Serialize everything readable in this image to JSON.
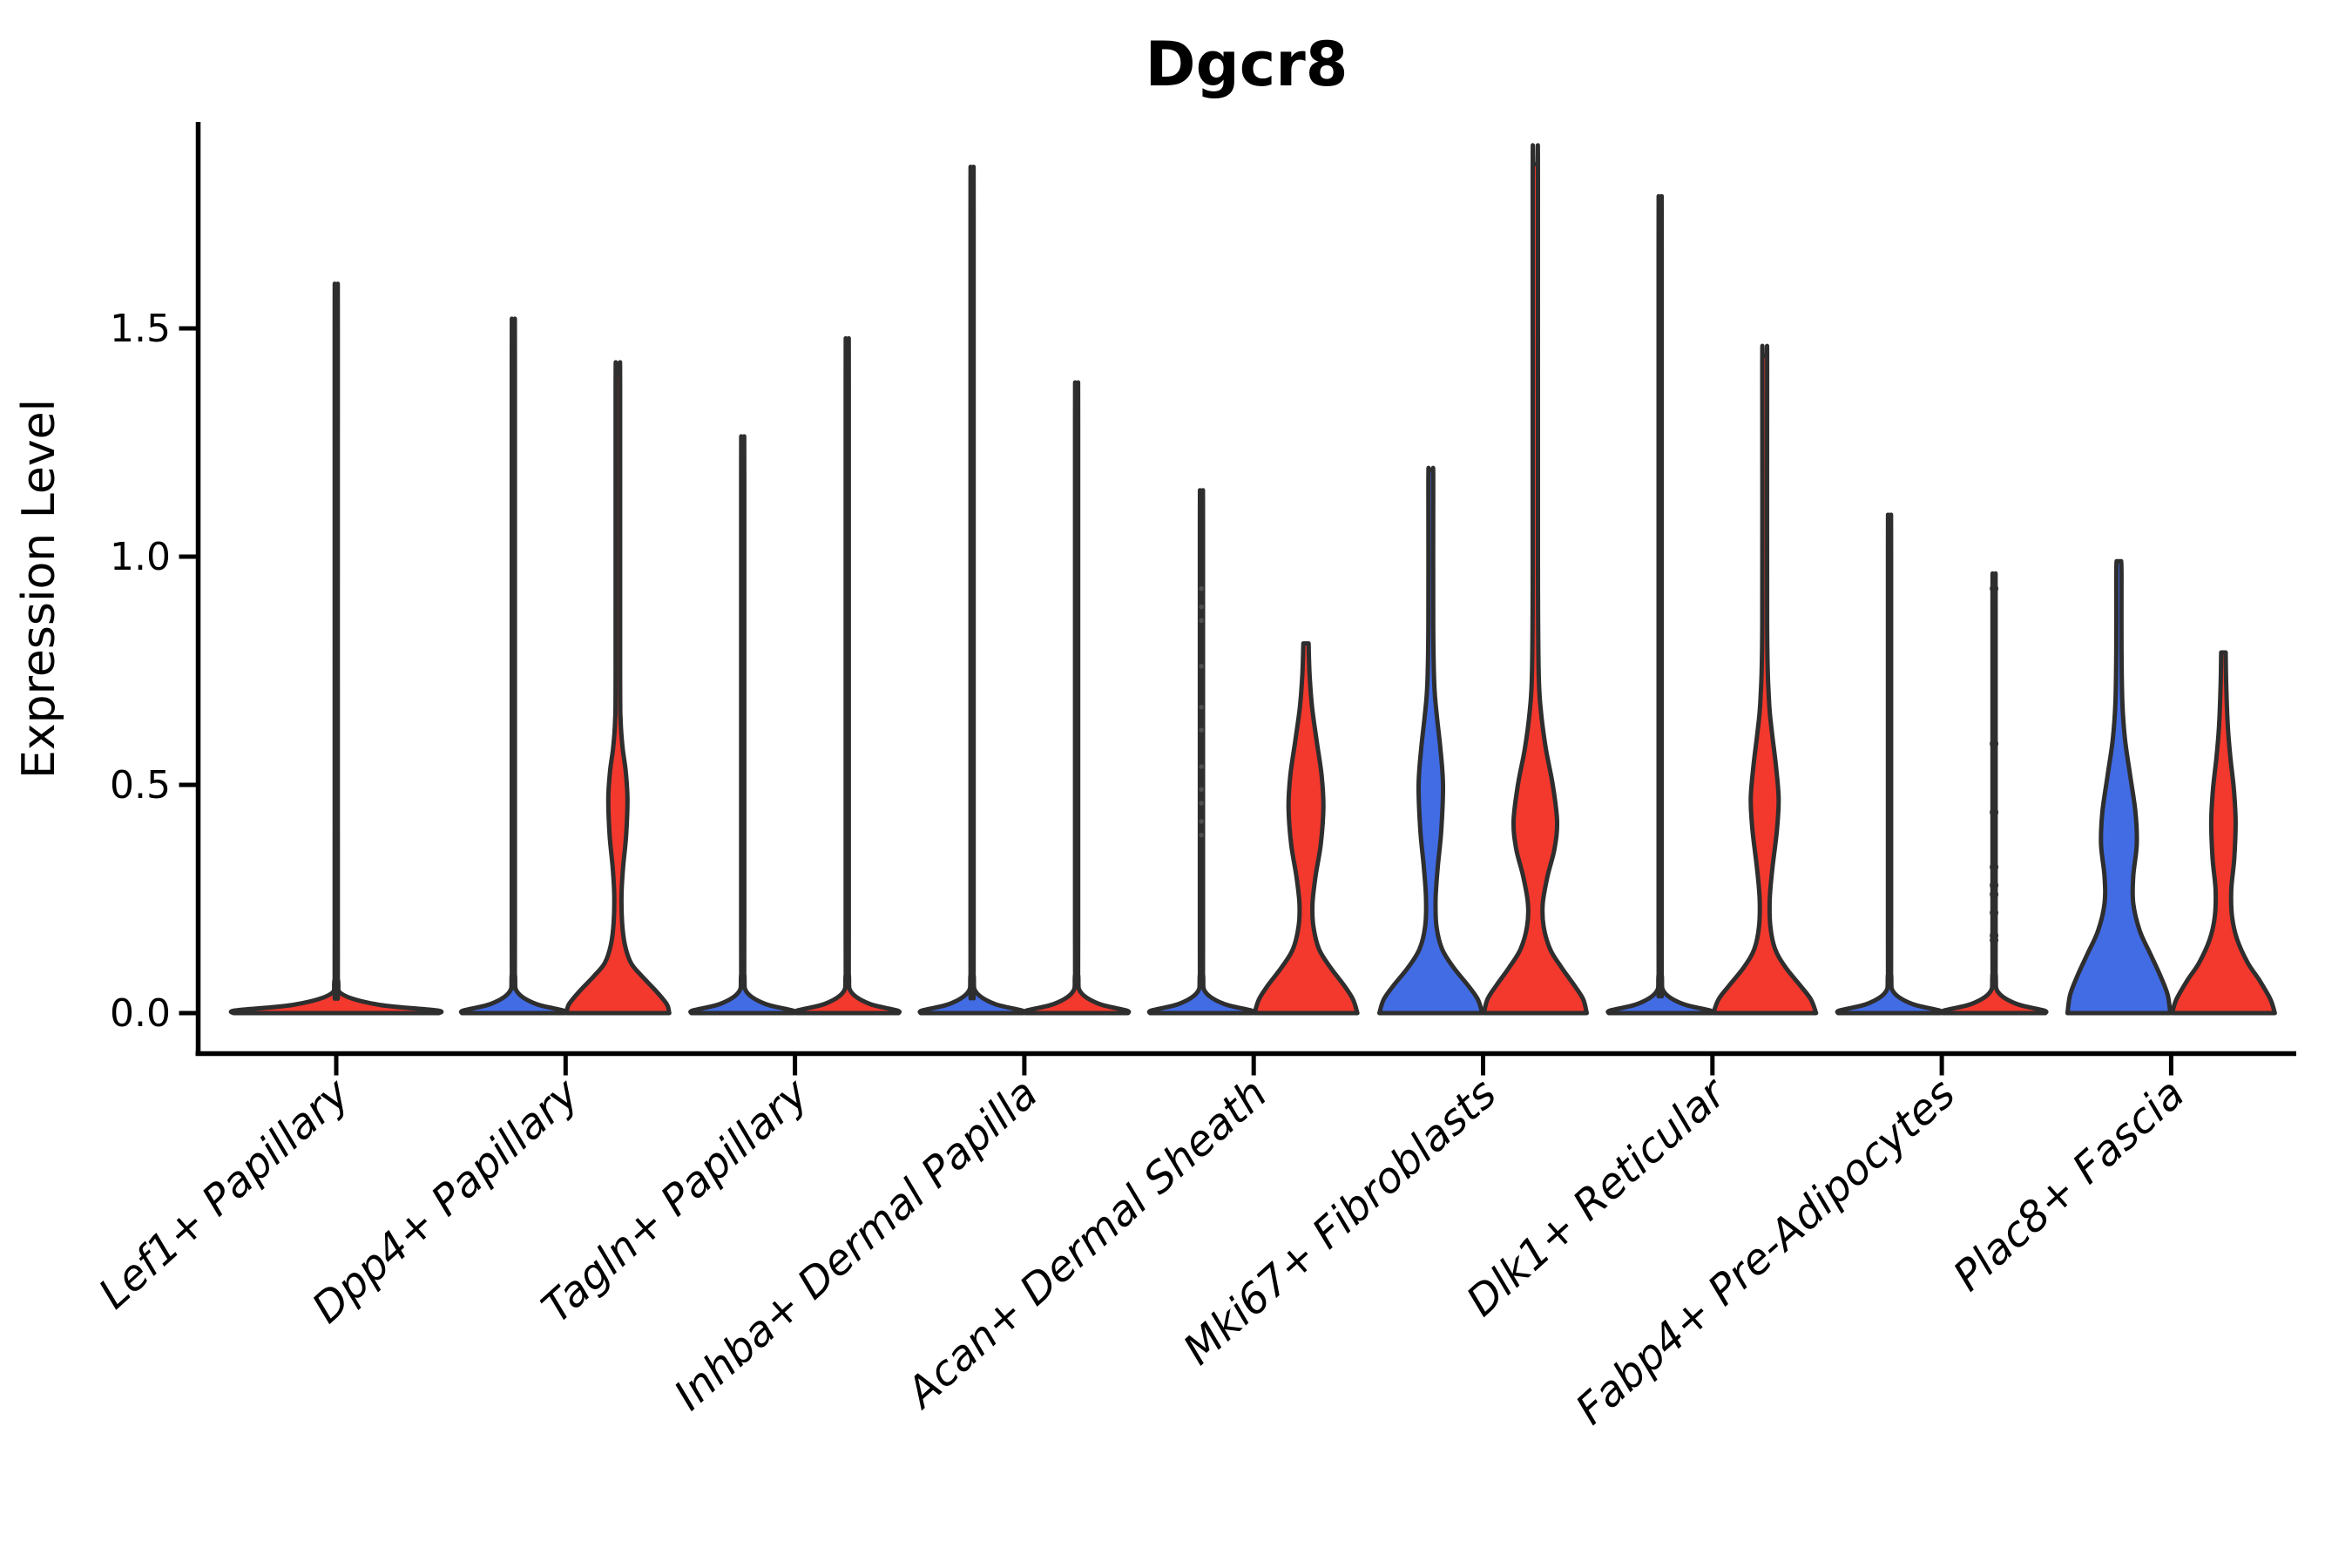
{
  "title": "Dgcr8",
  "y_axis": {
    "label": "Expression Level",
    "ticks": [
      "0.0",
      "0.5",
      "1.0",
      "1.5"
    ],
    "tick_values": [
      0.0,
      0.5,
      1.0,
      1.5
    ]
  },
  "colors": {
    "red": "#F3382D",
    "blue": "#426CE4",
    "violin_edge": "#2E2E2E",
    "axis": "#000000",
    "dot": "#2E2E2E",
    "faint_dot": "#6A6A6A",
    "background": "#FFFFFF"
  },
  "chart_data": {
    "type": "violin",
    "title": "Dgcr8",
    "ylabel": "Expression Level",
    "ylim": [
      0,
      1.95
    ],
    "yticks": [
      0.0,
      0.5,
      1.0,
      1.5
    ],
    "legend": "none",
    "split": "each cluster shows two violins (left=blue condition, right=red condition); profiles are [expression_value, half_width_px]",
    "categories": [
      "Lef1+ Papillary",
      "Dpp4+ Papillary",
      "Tagln+ Papillary",
      "Inhba+ Dermal Papilla",
      "Acan+ Dermal Sheath",
      "Mki67+ Fibroblasts",
      "Dlk1+ Reticular",
      "Fabp4+ Pre-Adipocytes",
      "Plac8+ Fascia"
    ],
    "groups": [
      {
        "category": "Lef1+ Papillary",
        "violins": [
          {
            "side": "center",
            "color": "red",
            "max": 1.52,
            "profile": [
              [
                0,
                118
              ],
              [
                0.006,
                115
              ],
              [
                0.018,
                50
              ],
              [
                0.04,
                8
              ],
              [
                0.07,
                2.2
              ],
              [
                0.16,
                1.8
              ],
              [
                1.49,
                1.8
              ],
              [
                1.52,
                1.6
              ]
            ]
          }
        ]
      },
      {
        "category": "Dpp4+ Papillary",
        "violins": [
          {
            "side": "left",
            "color": "blue",
            "max": 1.45,
            "profile": [
              [
                0,
                59
              ],
              [
                0.006,
                57
              ],
              [
                0.02,
                26
              ],
              [
                0.045,
                5
              ],
              [
                0.08,
                2
              ],
              [
                0.18,
                1.8
              ],
              [
                1.42,
                1.8
              ],
              [
                1.45,
                1.6
              ]
            ]
          },
          {
            "side": "right",
            "color": "red",
            "max": 1.4,
            "profile": [
              [
                0,
                59
              ],
              [
                0.02,
                56
              ],
              [
                0.05,
                43
              ],
              [
                0.08,
                28
              ],
              [
                0.11,
                15
              ],
              [
                0.15,
                8
              ],
              [
                0.2,
                4.8
              ],
              [
                0.26,
                4.2
              ],
              [
                0.32,
                6
              ],
              [
                0.39,
                9.5
              ],
              [
                0.47,
                11
              ],
              [
                0.53,
                9
              ],
              [
                0.58,
                5.5
              ],
              [
                0.64,
                3.2
              ],
              [
                0.75,
                2.6
              ],
              [
                1.37,
                2.6
              ],
              [
                1.4,
                2.3
              ]
            ]
          }
        ]
      },
      {
        "category": "Tagln+ Papillary",
        "violins": [
          {
            "side": "left",
            "color": "blue",
            "max": 1.21,
            "profile": [
              [
                0,
                59
              ],
              [
                0.006,
                57
              ],
              [
                0.02,
                26
              ],
              [
                0.045,
                5
              ],
              [
                0.08,
                2
              ],
              [
                0.18,
                1.8
              ],
              [
                1.18,
                1.8
              ],
              [
                1.21,
                1.6
              ]
            ]
          },
          {
            "side": "right",
            "color": "red",
            "max": 1.41,
            "profile": [
              [
                0,
                59
              ],
              [
                0.006,
                57
              ],
              [
                0.02,
                26
              ],
              [
                0.045,
                5
              ],
              [
                0.08,
                2
              ],
              [
                0.18,
                1.8
              ],
              [
                1.38,
                1.8
              ],
              [
                1.41,
                1.6
              ]
            ]
          }
        ]
      },
      {
        "category": "Inhba+ Dermal Papilla",
        "violins": [
          {
            "side": "left",
            "color": "blue",
            "max": 1.76,
            "profile": [
              [
                0,
                59
              ],
              [
                0.006,
                57
              ],
              [
                0.02,
                26
              ],
              [
                0.045,
                5
              ],
              [
                0.08,
                2
              ],
              [
                0.18,
                1.8
              ],
              [
                1.73,
                1.8
              ],
              [
                1.76,
                1.6
              ]
            ]
          },
          {
            "side": "right",
            "color": "red",
            "max": 1.32,
            "profile": [
              [
                0,
                59
              ],
              [
                0.006,
                57
              ],
              [
                0.02,
                26
              ],
              [
                0.045,
                5
              ],
              [
                0.08,
                2
              ],
              [
                0.18,
                1.8
              ],
              [
                1.29,
                1.8
              ],
              [
                1.32,
                1.6
              ]
            ]
          }
        ]
      },
      {
        "category": "Acan+ Dermal Sheath",
        "violins": [
          {
            "side": "left",
            "color": "blue",
            "max": 1.1,
            "profile": [
              [
                0,
                59
              ],
              [
                0.006,
                57
              ],
              [
                0.02,
                26
              ],
              [
                0.045,
                5
              ],
              [
                0.08,
                2
              ],
              [
                0.18,
                1.8
              ],
              [
                1.07,
                1.8
              ],
              [
                1.1,
                1.6
              ]
            ],
            "dots_faint": [
              0.93,
              0.89,
              0.86,
              0.76,
              0.67,
              0.62,
              0.54,
              0.49,
              0.46,
              0.42,
              0.39
            ]
          },
          {
            "side": "right",
            "color": "red",
            "max": 0.81,
            "profile": [
              [
                0,
                59
              ],
              [
                0.03,
                54
              ],
              [
                0.06,
                44
              ],
              [
                0.1,
                28
              ],
              [
                0.14,
                15
              ],
              [
                0.19,
                8.5
              ],
              [
                0.24,
                7.5
              ],
              [
                0.3,
                11
              ],
              [
                0.37,
                17
              ],
              [
                0.45,
                20
              ],
              [
                0.52,
                18
              ],
              [
                0.6,
                12
              ],
              [
                0.67,
                7
              ],
              [
                0.74,
                4.2
              ],
              [
                0.81,
                3
              ]
            ]
          }
        ]
      },
      {
        "category": "Mki67+ Fibroblasts",
        "violins": [
          {
            "side": "left",
            "color": "blue",
            "max": 1.19,
            "profile": [
              [
                0,
                59
              ],
              [
                0.03,
                54
              ],
              [
                0.06,
                43
              ],
              [
                0.1,
                26
              ],
              [
                0.14,
                13
              ],
              [
                0.19,
                6.5
              ],
              [
                0.25,
                5.5
              ],
              [
                0.32,
                8
              ],
              [
                0.4,
                12
              ],
              [
                0.5,
                14
              ],
              [
                0.58,
                11
              ],
              [
                0.65,
                7
              ],
              [
                0.72,
                4
              ],
              [
                0.85,
                2.8
              ],
              [
                1.16,
                2.8
              ],
              [
                1.19,
                2.5
              ]
            ]
          },
          {
            "side": "right",
            "color": "red",
            "max": 1.86,
            "profile": [
              [
                0,
                59
              ],
              [
                0.03,
                55
              ],
              [
                0.06,
                45
              ],
              [
                0.1,
                30
              ],
              [
                0.14,
                17
              ],
              [
                0.19,
                9.5
              ],
              [
                0.24,
                8.5
              ],
              [
                0.3,
                14
              ],
              [
                0.36,
                22
              ],
              [
                0.42,
                25
              ],
              [
                0.5,
                20
              ],
              [
                0.58,
                12
              ],
              [
                0.66,
                6.5
              ],
              [
                0.75,
                3.8
              ],
              [
                1.0,
                3
              ],
              [
                1.83,
                3
              ],
              [
                1.86,
                2.6
              ]
            ]
          }
        ]
      },
      {
        "category": "Dlk1+ Reticular",
        "violins": [
          {
            "side": "left",
            "color": "blue",
            "max": 1.7,
            "profile": [
              [
                0,
                59
              ],
              [
                0.006,
                57
              ],
              [
                0.02,
                26
              ],
              [
                0.045,
                5
              ],
              [
                0.08,
                2
              ],
              [
                0.18,
                1.8
              ],
              [
                1.67,
                1.8
              ],
              [
                1.7,
                1.6
              ]
            ]
          },
          {
            "side": "right",
            "color": "red",
            "max": 1.44,
            "profile": [
              [
                0,
                59
              ],
              [
                0.03,
                53
              ],
              [
                0.06,
                41
              ],
              [
                0.1,
                24
              ],
              [
                0.14,
                12
              ],
              [
                0.19,
                6.5
              ],
              [
                0.25,
                5.8
              ],
              [
                0.32,
                9
              ],
              [
                0.4,
                14
              ],
              [
                0.47,
                16
              ],
              [
                0.54,
                13
              ],
              [
                0.62,
                8
              ],
              [
                0.69,
                4.8
              ],
              [
                0.85,
                2.8
              ],
              [
                1.41,
                2.8
              ],
              [
                1.44,
                2.5
              ]
            ]
          }
        ]
      },
      {
        "category": "Fabp4+ Pre-Adipocytes",
        "violins": [
          {
            "side": "left",
            "color": "blue",
            "max": 1.05,
            "profile": [
              [
                0,
                59
              ],
              [
                0.006,
                57
              ],
              [
                0.02,
                26
              ],
              [
                0.045,
                5
              ],
              [
                0.08,
                2
              ],
              [
                0.18,
                1.8
              ],
              [
                1.02,
                1.8
              ],
              [
                1.05,
                1.6
              ]
            ]
          },
          {
            "side": "right",
            "color": "red",
            "max": 0.93,
            "profile": [
              [
                0,
                59
              ],
              [
                0.006,
                57
              ],
              [
                0.02,
                26
              ],
              [
                0.045,
                5
              ],
              [
                0.08,
                2
              ],
              [
                0.18,
                1.8
              ],
              [
                0.9,
                1.8
              ],
              [
                0.93,
                1.6
              ]
            ],
            "dots": [
              0.93,
              0.59,
              0.44,
              0.32,
              0.28,
              0.26,
              0.22,
              0.17,
              0.16
            ]
          }
        ]
      },
      {
        "category": "Plac8+ Fascia",
        "violins": [
          {
            "side": "left",
            "color": "blue",
            "max": 0.99,
            "profile": [
              [
                0,
                59
              ],
              [
                0.04,
                56
              ],
              [
                0.08,
                48
              ],
              [
                0.13,
                36
              ],
              [
                0.18,
                24
              ],
              [
                0.24,
                16.5
              ],
              [
                0.3,
                16.5
              ],
              [
                0.37,
                20.5
              ],
              [
                0.44,
                19
              ],
              [
                0.52,
                13
              ],
              [
                0.6,
                7
              ],
              [
                0.68,
                4
              ],
              [
                0.8,
                3
              ],
              [
                0.96,
                3
              ],
              [
                0.99,
                2.6
              ]
            ]
          },
          {
            "side": "right",
            "color": "red",
            "max": 0.79,
            "profile": [
              [
                0,
                59
              ],
              [
                0.03,
                54
              ],
              [
                0.07,
                42
              ],
              [
                0.11,
                28
              ],
              [
                0.16,
                16
              ],
              [
                0.21,
                10
              ],
              [
                0.27,
                9
              ],
              [
                0.34,
                12.5
              ],
              [
                0.42,
                14
              ],
              [
                0.49,
                12
              ],
              [
                0.56,
                8
              ],
              [
                0.63,
                5
              ],
              [
                0.72,
                3.2
              ],
              [
                0.79,
                2.6
              ]
            ]
          }
        ]
      }
    ]
  }
}
